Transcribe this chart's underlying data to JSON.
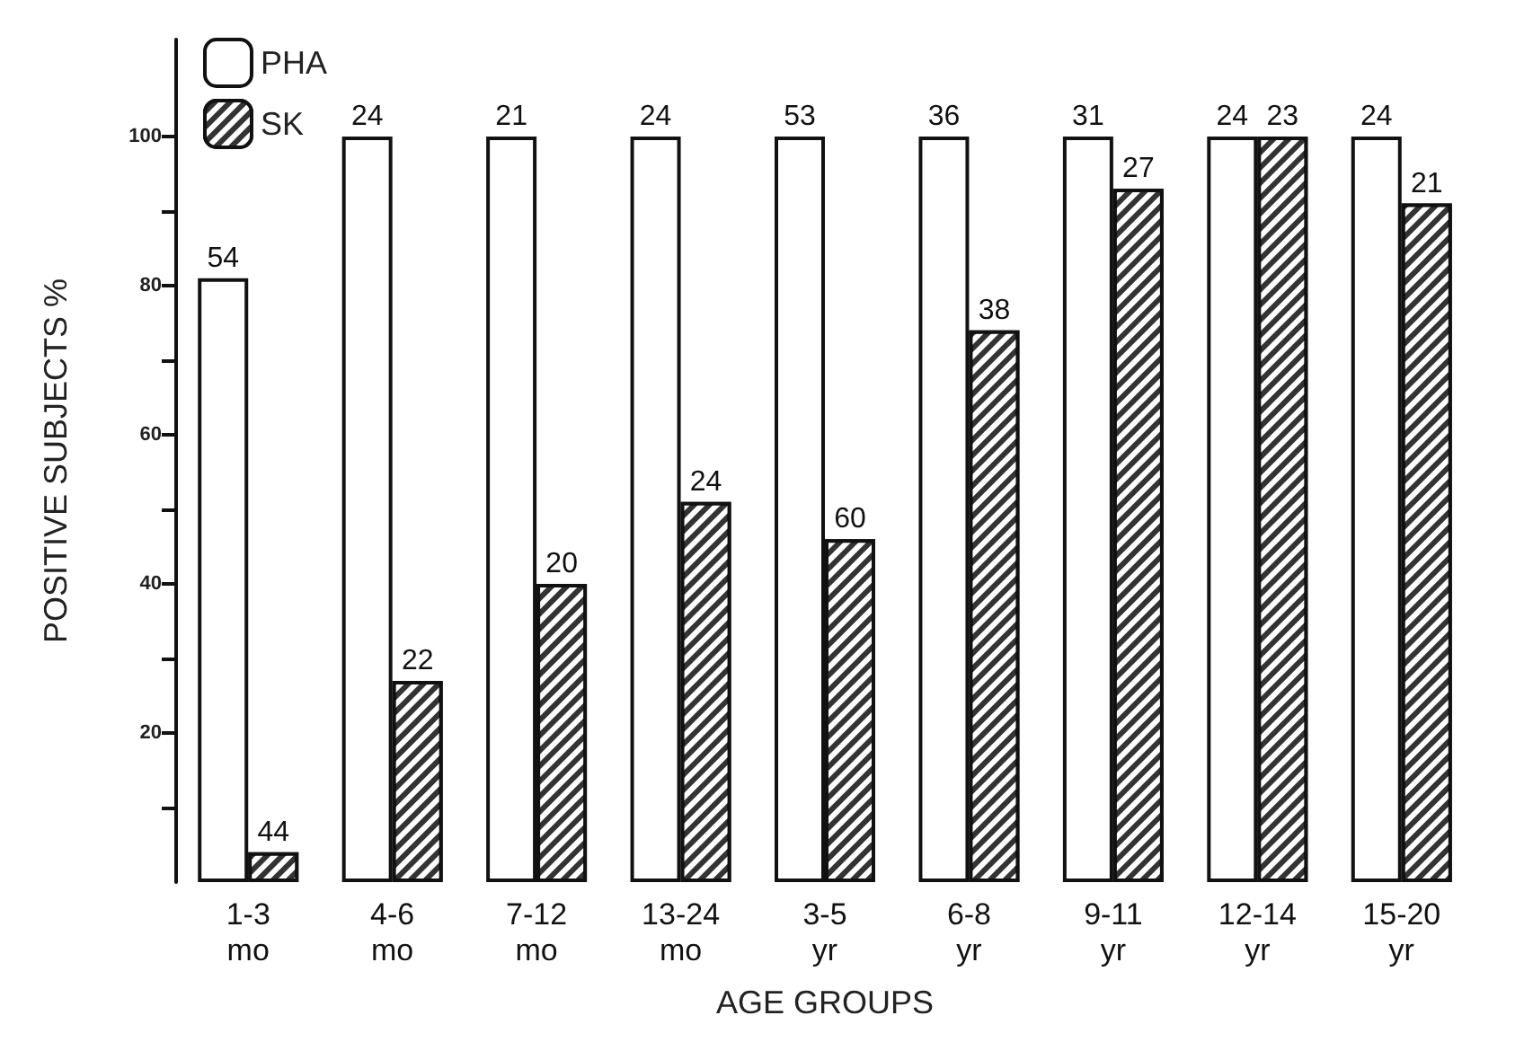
{
  "chart_data": {
    "type": "bar",
    "xlabel": "AGE GROUPS",
    "ylabel": "POSITIVE SUBJECTS %",
    "categories": [
      "1-3\nmo",
      "4-6\nmo",
      "7-12\nmo",
      "13-24\nmo",
      "3-5\nyr",
      "6-8\nyr",
      "9-11\nyr",
      "12-14\nyr",
      "15-20\nyr"
    ],
    "series": [
      {
        "name": "PHA",
        "color": "#ffffff",
        "values": [
          81,
          100,
          100,
          100,
          100,
          100,
          100,
          100,
          100
        ]
      },
      {
        "name": "SK",
        "color": "#333333",
        "values": [
          4,
          27,
          40,
          51,
          46,
          74,
          93,
          100,
          91
        ]
      }
    ],
    "annotations": [
      {
        "text": "54",
        "x": "1-3\nmo",
        "y": 81
      },
      {
        "text": "44",
        "x": "1-3\nmo",
        "y": 4
      },
      {
        "text": "24",
        "x": "4-6\nmo",
        "y": 100
      },
      {
        "text": "22",
        "x": "4-6\nmo",
        "y": 27
      },
      {
        "text": "21",
        "x": "7-12\nmo",
        "y": 100
      },
      {
        "text": "20",
        "x": "7-12\nmo",
        "y": 40
      },
      {
        "text": "24",
        "x": "13-24\nmo",
        "y": 100
      },
      {
        "text": "24",
        "x": "13-24\nmo",
        "y": 51
      },
      {
        "text": "53",
        "x": "3-5\nyr",
        "y": 100
      },
      {
        "text": "60",
        "x": "3-5\nyr",
        "y": 46
      },
      {
        "text": "36",
        "x": "6-8\nyr",
        "y": 100
      },
      {
        "text": "38",
        "x": "6-8\nyr",
        "y": 74
      },
      {
        "text": "31",
        "x": "9-11\nyr",
        "y": 100
      },
      {
        "text": "27",
        "x": "9-11\nyr",
        "y": 93
      },
      {
        "text": "24",
        "x": "12-14\nyr",
        "y": 100
      },
      {
        "text": "23",
        "x": "12-14\nyr",
        "y": 100
      },
      {
        "text": "24",
        "x": "15-20\nyr",
        "y": 100
      },
      {
        "text": "21",
        "x": "15-20\nyr",
        "y": 91
      }
    ],
    "ylim": [
      0,
      113
    ],
    "yticks": [
      {
        "value": 10,
        "label": null
      },
      20,
      {
        "value": 30,
        "label": null
      },
      40,
      {
        "value": 50,
        "label": null
      },
      60,
      {
        "value": 70,
        "label": null
      },
      80,
      {
        "value": 90,
        "label": null
      },
      100
    ],
    "legend": "top left",
    "grid": false
  }
}
